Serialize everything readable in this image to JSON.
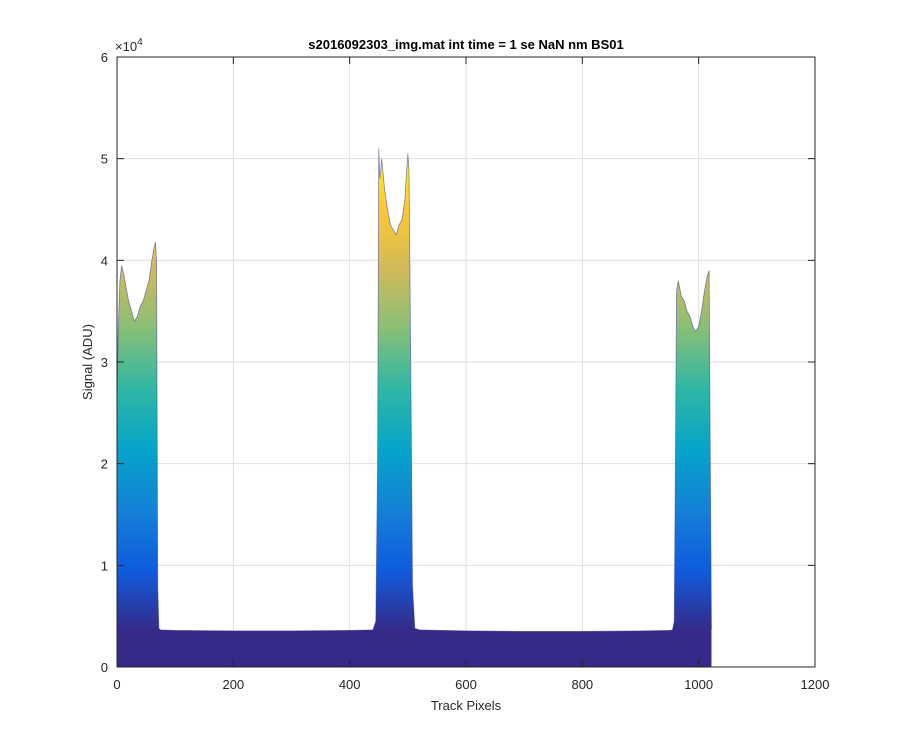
{
  "chart_data": {
    "type": "area",
    "title": "s2016092303_img.mat int time = 1 se  NaN nm BS01",
    "xlabel": "Track Pixels",
    "ylabel": "Signal (ADU)",
    "xlim": [
      0,
      1200
    ],
    "ylim": [
      0,
      60000
    ],
    "xticks": [
      0,
      200,
      400,
      600,
      800,
      1000,
      1200
    ],
    "xtick_labels": [
      "0",
      "200",
      "400",
      "600",
      "800",
      "1000",
      "1200"
    ],
    "yticks": [
      0,
      10000,
      20000,
      30000,
      40000,
      50000,
      60000
    ],
    "ytick_labels": [
      "0",
      "1",
      "2",
      "3",
      "4",
      "5",
      "6"
    ],
    "y_exponent_base": "×10",
    "y_exponent_power": "4",
    "grid": true,
    "colormap": [
      "#352a87",
      "#0f5cdd",
      "#1481d6",
      "#06a4ca",
      "#2eb7a4",
      "#87bf77",
      "#d1bb59",
      "#fec832",
      "#f9fb0e"
    ],
    "baseline": 3600,
    "series": [
      {
        "name": "BS01",
        "x": [
          0,
          2,
          5,
          8,
          10,
          12,
          15,
          20,
          25,
          30,
          35,
          40,
          45,
          50,
          55,
          60,
          63,
          66,
          68,
          70,
          72,
          75,
          100,
          200,
          300,
          400,
          440,
          445,
          448,
          450,
          452,
          455,
          460,
          465,
          470,
          475,
          480,
          485,
          490,
          495,
          497,
          500,
          502,
          505,
          508,
          512,
          520,
          600,
          700,
          800,
          900,
          950,
          955,
          958,
          960,
          962,
          965,
          970,
          975,
          980,
          985,
          990,
          995,
          1000,
          1005,
          1010,
          1015,
          1018,
          1020,
          1022
        ],
        "y": [
          26000,
          33000,
          38000,
          39500,
          39000,
          38500,
          37500,
          36000,
          35000,
          34000,
          34500,
          35500,
          36000,
          37000,
          38000,
          40000,
          41000,
          41800,
          40000,
          8000,
          3800,
          3650,
          3600,
          3550,
          3550,
          3600,
          3650,
          4500,
          20000,
          51000,
          48000,
          50000,
          47000,
          45000,
          43500,
          43000,
          42500,
          43500,
          44000,
          46000,
          48000,
          50500,
          49000,
          30000,
          8000,
          3800,
          3650,
          3550,
          3500,
          3500,
          3550,
          3600,
          3650,
          4500,
          20000,
          37000,
          38000,
          36500,
          36000,
          35000,
          34500,
          33500,
          33000,
          33500,
          35000,
          37000,
          38500,
          39000,
          20000,
          3700
        ]
      }
    ]
  }
}
